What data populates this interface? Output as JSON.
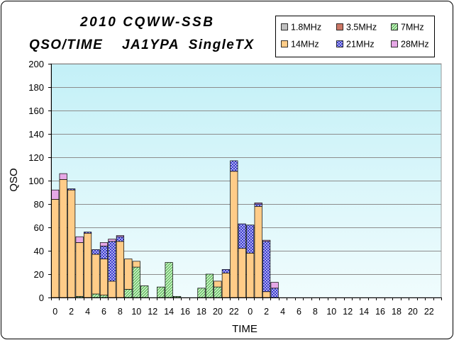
{
  "colors": {
    "plot_background_top": "#c3f0f7",
    "plot_background_bottom": "#f0fcfd",
    "grid": "#8c8c8c",
    "frame": "#000000"
  },
  "chart_data": {
    "type": "bar",
    "stacked": true,
    "title": "2010 CQWW-SSB",
    "subtitle": "QSO/TIME    JA1YPA  SingleTX",
    "xlabel": "TIME",
    "ylabel": "QSO",
    "ylim": [
      0,
      200
    ],
    "yticks": [
      0,
      20,
      40,
      60,
      80,
      100,
      120,
      140,
      160,
      180,
      200
    ],
    "grid": true,
    "legend_position": "top-right",
    "categories": [
      0,
      1,
      2,
      3,
      4,
      5,
      6,
      7,
      8,
      9,
      10,
      11,
      12,
      13,
      14,
      15,
      16,
      17,
      18,
      19,
      20,
      21,
      22,
      23,
      0,
      1,
      2,
      3,
      4,
      5,
      6,
      7,
      8,
      9,
      10,
      11,
      12,
      13,
      14,
      15,
      16,
      17,
      18,
      19,
      20,
      21,
      22,
      23
    ],
    "series": [
      {
        "name": "1.8MHz",
        "color": "#c0c0c0",
        "values": [
          0,
          0,
          0,
          0,
          0,
          0,
          0,
          0,
          0,
          0,
          0,
          0,
          0,
          0,
          0,
          0,
          0,
          0,
          0,
          0,
          0,
          0,
          0,
          0,
          0,
          0,
          0,
          0,
          0,
          0,
          0,
          0,
          0,
          0,
          0,
          0,
          0,
          0,
          0,
          0,
          0,
          0,
          0,
          0,
          0,
          0,
          0,
          0
        ]
      },
      {
        "name": "3.5MHz",
        "color": "#cc7766",
        "values": [
          0,
          0,
          0,
          0,
          0,
          0,
          0,
          0,
          0,
          0,
          0,
          0,
          0,
          0,
          0,
          0,
          0,
          0,
          0,
          0,
          0,
          0,
          0,
          0,
          0,
          0,
          0,
          0,
          0,
          0,
          0,
          0,
          0,
          0,
          0,
          0,
          0,
          0,
          0,
          0,
          0,
          0,
          0,
          0,
          0,
          0,
          0,
          0
        ]
      },
      {
        "name": "7MHz",
        "color": "#c8f4c2",
        "hatch": "#3f9f3f",
        "pattern": "diagonal",
        "values": [
          0,
          0,
          0,
          1,
          0,
          3,
          2,
          0,
          0,
          7,
          26,
          10,
          0,
          9,
          30,
          1,
          0,
          0,
          8,
          20,
          9,
          0,
          0,
          0,
          0,
          0,
          0,
          0,
          0,
          0,
          0,
          0,
          0,
          0,
          0,
          0,
          0,
          0,
          0,
          0,
          0,
          0,
          0,
          0,
          0,
          0,
          0,
          0
        ]
      },
      {
        "name": "14MHz",
        "color": "#ffcc88",
        "values": [
          84,
          101,
          92,
          46,
          55,
          34,
          31,
          14,
          48,
          26,
          5,
          0,
          0,
          0,
          0,
          0,
          0,
          0,
          0,
          0,
          5,
          21,
          108,
          42,
          38,
          78,
          5,
          0,
          0,
          0,
          0,
          0,
          0,
          0,
          0,
          0,
          0,
          0,
          0,
          0,
          0,
          0,
          0,
          0,
          0,
          0,
          0,
          0
        ]
      },
      {
        "name": "21MHz",
        "color": "#d2d2ff",
        "hatch": "#2626c4",
        "pattern": "crosshatch",
        "values": [
          0,
          0,
          1,
          0,
          1,
          4,
          11,
          34,
          4,
          0,
          0,
          0,
          0,
          0,
          0,
          0,
          0,
          0,
          0,
          0,
          0,
          3,
          9,
          21,
          24,
          2,
          43,
          8,
          0,
          0,
          0,
          0,
          0,
          0,
          0,
          0,
          0,
          0,
          0,
          0,
          0,
          0,
          0,
          0,
          0,
          0,
          0,
          0
        ]
      },
      {
        "name": "28MHz",
        "color": "#e6a8e6",
        "values": [
          8,
          5,
          0,
          5,
          0,
          0,
          3,
          2,
          1,
          0,
          0,
          0,
          0,
          0,
          0,
          0,
          0,
          0,
          0,
          0,
          0,
          0,
          0,
          0,
          0,
          1,
          1,
          5,
          0,
          0,
          0,
          0,
          0,
          0,
          0,
          0,
          0,
          0,
          0,
          0,
          0,
          0,
          0,
          0,
          0,
          0,
          0,
          0
        ]
      }
    ]
  }
}
